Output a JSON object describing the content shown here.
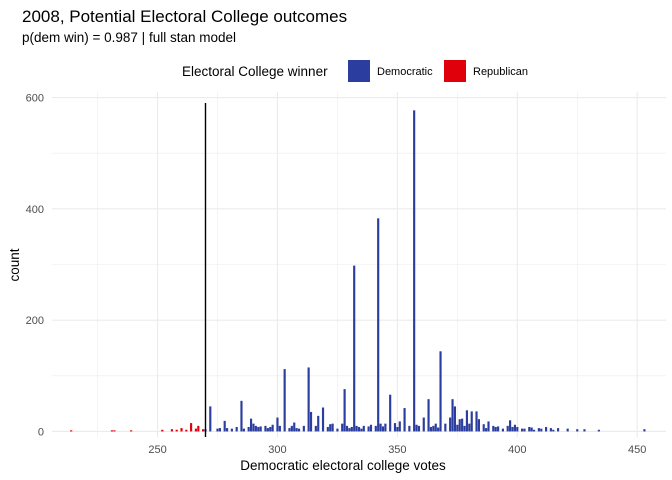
{
  "chart_data": {
    "type": "bar",
    "title": "2008, Potential Electoral College outcomes",
    "subtitle": "p(dem win) = 0.987 | full stan model",
    "xlabel": "Democratic electoral college votes",
    "ylabel": "count",
    "xlim": [
      206,
      462
    ],
    "ylim": [
      -10,
      610
    ],
    "x_ticks": [
      250,
      300,
      350,
      400,
      450
    ],
    "y_ticks": [
      0,
      200,
      400,
      600
    ],
    "grid": true,
    "threshold_line": 270,
    "legend": {
      "title": "Electoral College winner",
      "position": "top",
      "entries": [
        {
          "label": "Democratic",
          "color": "#2b3d9e"
        },
        {
          "label": "Republican",
          "color": "#e0000b"
        }
      ]
    },
    "series": [
      {
        "name": "Republican",
        "color": "#e0000b",
        "points": [
          [
            214,
            2
          ],
          [
            231,
            2
          ],
          [
            232,
            2
          ],
          [
            239,
            2
          ],
          [
            252,
            3
          ],
          [
            256,
            4
          ],
          [
            258,
            3
          ],
          [
            260,
            6
          ],
          [
            262,
            3
          ],
          [
            264,
            15
          ],
          [
            266,
            5
          ],
          [
            267,
            10
          ],
          [
            269,
            4
          ]
        ]
      },
      {
        "name": "Democratic",
        "color": "#2b3d9e",
        "points": [
          [
            270,
            4
          ],
          [
            272,
            45
          ],
          [
            275,
            5
          ],
          [
            276,
            6
          ],
          [
            278,
            19
          ],
          [
            279,
            6
          ],
          [
            281,
            5
          ],
          [
            283,
            8
          ],
          [
            285,
            55
          ],
          [
            286,
            5
          ],
          [
            288,
            8
          ],
          [
            289,
            23
          ],
          [
            290,
            14
          ],
          [
            291,
            10
          ],
          [
            292,
            8
          ],
          [
            293,
            9
          ],
          [
            295,
            10
          ],
          [
            296,
            6
          ],
          [
            297,
            8
          ],
          [
            298,
            12
          ],
          [
            300,
            25
          ],
          [
            301,
            10
          ],
          [
            303,
            112
          ],
          [
            305,
            6
          ],
          [
            306,
            10
          ],
          [
            307,
            16
          ],
          [
            308,
            6
          ],
          [
            309,
            5
          ],
          [
            311,
            10
          ],
          [
            313,
            115
          ],
          [
            314,
            35
          ],
          [
            316,
            10
          ],
          [
            317,
            28
          ],
          [
            319,
            43
          ],
          [
            321,
            8
          ],
          [
            322,
            13
          ],
          [
            323,
            14
          ],
          [
            325,
            5
          ],
          [
            327,
            14
          ],
          [
            328,
            76
          ],
          [
            329,
            10
          ],
          [
            330,
            6
          ],
          [
            331,
            8
          ],
          [
            332,
            298
          ],
          [
            333,
            10
          ],
          [
            334,
            8
          ],
          [
            335,
            5
          ],
          [
            336,
            10
          ],
          [
            338,
            9
          ],
          [
            339,
            12
          ],
          [
            341,
            10
          ],
          [
            342,
            383
          ],
          [
            343,
            14
          ],
          [
            344,
            9
          ],
          [
            345,
            14
          ],
          [
            347,
            66
          ],
          [
            349,
            15
          ],
          [
            350,
            8
          ],
          [
            351,
            18
          ],
          [
            353,
            42
          ],
          [
            355,
            10
          ],
          [
            357,
            577
          ],
          [
            358,
            12
          ],
          [
            359,
            10
          ],
          [
            361,
            25
          ],
          [
            363,
            58
          ],
          [
            364,
            8
          ],
          [
            365,
            10
          ],
          [
            366,
            14
          ],
          [
            367,
            7
          ],
          [
            368,
            144
          ],
          [
            370,
            14
          ],
          [
            372,
            25
          ],
          [
            373,
            58
          ],
          [
            374,
            45
          ],
          [
            375,
            12
          ],
          [
            376,
            22
          ],
          [
            377,
            23
          ],
          [
            378,
            10
          ],
          [
            379,
            38
          ],
          [
            380,
            14
          ],
          [
            381,
            36
          ],
          [
            383,
            36
          ],
          [
            384,
            22
          ],
          [
            386,
            13
          ],
          [
            387,
            6
          ],
          [
            388,
            18
          ],
          [
            390,
            10
          ],
          [
            391,
            8
          ],
          [
            392,
            9
          ],
          [
            394,
            5
          ],
          [
            396,
            10
          ],
          [
            397,
            20
          ],
          [
            398,
            8
          ],
          [
            399,
            12
          ],
          [
            400,
            8
          ],
          [
            402,
            5
          ],
          [
            403,
            5
          ],
          [
            405,
            8
          ],
          [
            406,
            7
          ],
          [
            407,
            3
          ],
          [
            409,
            6
          ],
          [
            410,
            5
          ],
          [
            412,
            8
          ],
          [
            414,
            6
          ],
          [
            415,
            3
          ],
          [
            417,
            6
          ],
          [
            421,
            5
          ],
          [
            425,
            4
          ],
          [
            428,
            4
          ],
          [
            434,
            3
          ],
          [
            453,
            4
          ]
        ]
      }
    ]
  }
}
